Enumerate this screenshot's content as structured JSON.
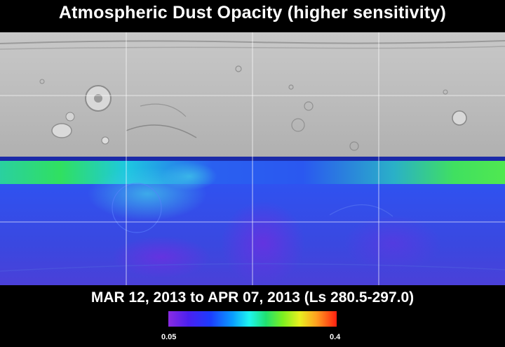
{
  "header": {
    "title": "Atmospheric Dust Opacity (higher sensitivity)"
  },
  "footer": {
    "date_range": "MAR 12, 2013 to APR 07, 2013 (Ls 280.5-297.0)"
  },
  "colorbar": {
    "min_label": "0.05",
    "max_label": "0.4"
  },
  "colors": {
    "terrain": "#bcbcbc",
    "opacity_blue": "#2f4fe6",
    "opacity_green": "#28e07a",
    "gridline": "#ffffff"
  }
}
